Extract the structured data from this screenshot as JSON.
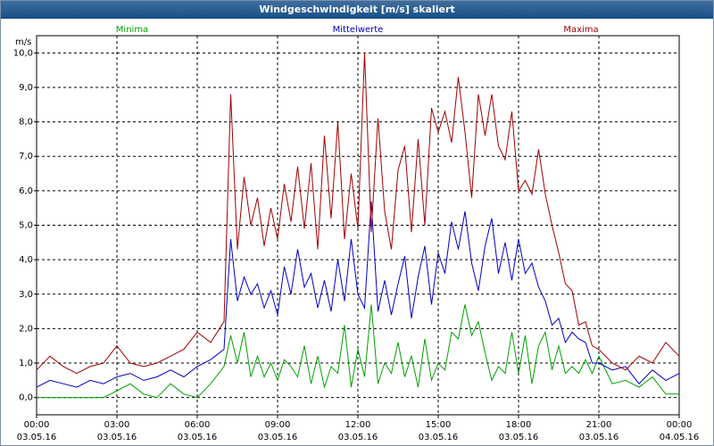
{
  "window": {
    "title": "Windgeschwindigkeit [m/s] skaliert"
  },
  "chart_data": {
    "type": "line",
    "title": "Windgeschwindigkeit [m/s] skaliert",
    "ylabel": "m/s",
    "ylim": [
      -0.5,
      10.5
    ],
    "xlim": [
      0,
      24
    ],
    "grid": true,
    "yticks": [
      "0,0",
      "1,0",
      "2,0",
      "3,0",
      "4,0",
      "5,0",
      "6,0",
      "7,0",
      "8,0",
      "9,0",
      "10,0"
    ],
    "ytick_values": [
      0,
      1,
      2,
      3,
      4,
      5,
      6,
      7,
      8,
      9,
      10
    ],
    "xticks": [
      {
        "time": "00:00",
        "date": "03.05.16",
        "hour": 0
      },
      {
        "time": "03:00",
        "date": "03.05.16",
        "hour": 3
      },
      {
        "time": "06:00",
        "date": "03.05.16",
        "hour": 6
      },
      {
        "time": "09:00",
        "date": "03.05.16",
        "hour": 9
      },
      {
        "time": "12:00",
        "date": "03.05.16",
        "hour": 12
      },
      {
        "time": "15:00",
        "date": "03.05.16",
        "hour": 15
      },
      {
        "time": "18:00",
        "date": "03.05.16",
        "hour": 18
      },
      {
        "time": "21:00",
        "date": "03.05.16",
        "hour": 21
      },
      {
        "time": "00:00",
        "date": "04.05.16",
        "hour": 24
      }
    ],
    "series": [
      {
        "name": "Minima",
        "color": "#00a000",
        "x": [
          0,
          0.5,
          1,
          1.5,
          2,
          2.5,
          3,
          3.5,
          4,
          4.5,
          5,
          5.5,
          6,
          6.5,
          7,
          7.25,
          7.5,
          7.75,
          8,
          8.25,
          8.5,
          8.75,
          9,
          9.25,
          9.5,
          9.75,
          10,
          10.25,
          10.5,
          10.75,
          11,
          11.25,
          11.5,
          11.75,
          12,
          12.25,
          12.5,
          12.75,
          13,
          13.25,
          13.5,
          13.75,
          14,
          14.25,
          14.5,
          14.75,
          15,
          15.25,
          15.5,
          15.75,
          16,
          16.25,
          16.5,
          16.75,
          17,
          17.25,
          17.5,
          17.75,
          18,
          18.25,
          18.5,
          18.75,
          19,
          19.25,
          19.5,
          19.75,
          20,
          20.25,
          20.5,
          20.75,
          21,
          21.5,
          22,
          22.5,
          23,
          23.5,
          24
        ],
        "values": [
          0,
          0,
          0,
          0,
          0,
          0,
          0.2,
          0.4,
          0.1,
          0,
          0.4,
          0.1,
          0,
          0.4,
          0.9,
          1.8,
          1.0,
          1.9,
          0.6,
          1.2,
          0.6,
          1.0,
          0.5,
          1.1,
          0.9,
          0.6,
          1.5,
          0.4,
          1.2,
          0.3,
          0.9,
          0.7,
          2.1,
          0.3,
          1.4,
          0.6,
          2.7,
          0.4,
          1.0,
          0.7,
          1.6,
          0.6,
          1.2,
          0.3,
          1.7,
          0.5,
          1.0,
          0.8,
          1.9,
          1.7,
          2.7,
          1.8,
          2.2,
          1.3,
          0.5,
          0.9,
          0.7,
          1.9,
          0.7,
          1.8,
          0.4,
          1.5,
          1.9,
          0.8,
          1.5,
          0.7,
          0.9,
          0.7,
          1.1,
          0.7,
          1.2,
          0.4,
          0.5,
          0.3,
          0.6,
          0.1,
          0.1
        ]
      },
      {
        "name": "Mittelwerte",
        "color": "#0000c0",
        "x": [
          0,
          0.5,
          1,
          1.5,
          2,
          2.5,
          3,
          3.5,
          4,
          4.5,
          5,
          5.5,
          6,
          6.5,
          7,
          7.25,
          7.5,
          7.75,
          8,
          8.25,
          8.5,
          8.75,
          9,
          9.25,
          9.5,
          9.75,
          10,
          10.25,
          10.5,
          10.75,
          11,
          11.25,
          11.5,
          11.75,
          12,
          12.25,
          12.5,
          12.75,
          13,
          13.25,
          13.5,
          13.75,
          14,
          14.25,
          14.5,
          14.75,
          15,
          15.25,
          15.5,
          15.75,
          16,
          16.25,
          16.5,
          16.75,
          17,
          17.25,
          17.5,
          17.75,
          18,
          18.25,
          18.5,
          18.75,
          19,
          19.25,
          19.5,
          19.75,
          20,
          20.25,
          20.5,
          20.75,
          21,
          21.5,
          22,
          22.5,
          23,
          23.5,
          24
        ],
        "values": [
          0.3,
          0.5,
          0.4,
          0.3,
          0.5,
          0.4,
          0.6,
          0.7,
          0.5,
          0.6,
          0.8,
          0.6,
          0.9,
          1.1,
          1.4,
          4.6,
          2.8,
          3.5,
          3.0,
          3.3,
          2.6,
          3.1,
          2.4,
          3.8,
          3.0,
          4.3,
          3.2,
          3.6,
          2.6,
          3.4,
          2.5,
          4.0,
          2.8,
          4.6,
          3.0,
          2.6,
          5.7,
          2.5,
          3.4,
          2.4,
          3.3,
          4.1,
          2.3,
          3.5,
          4.4,
          2.7,
          4.2,
          3.6,
          5.1,
          4.3,
          5.4,
          3.9,
          3.1,
          4.4,
          5.2,
          3.6,
          4.5,
          3.4,
          4.6,
          3.6,
          3.9,
          3.2,
          2.8,
          2.1,
          2.3,
          1.6,
          1.9,
          1.7,
          1.6,
          1.0,
          1.0,
          0.8,
          0.9,
          0.4,
          0.8,
          0.5,
          0.7
        ]
      },
      {
        "name": "Maxima",
        "color": "#a00000",
        "x": [
          0,
          0.5,
          1,
          1.5,
          2,
          2.5,
          3,
          3.5,
          4,
          4.5,
          5,
          5.5,
          6,
          6.5,
          7,
          7.25,
          7.5,
          7.75,
          8,
          8.25,
          8.5,
          8.75,
          9,
          9.25,
          9.5,
          9.75,
          10,
          10.25,
          10.5,
          10.75,
          11,
          11.25,
          11.5,
          11.75,
          12,
          12.25,
          12.5,
          12.75,
          13,
          13.25,
          13.5,
          13.75,
          14,
          14.25,
          14.5,
          14.75,
          15,
          15.25,
          15.5,
          15.75,
          16,
          16.25,
          16.5,
          16.75,
          17,
          17.25,
          17.5,
          17.75,
          18,
          18.25,
          18.5,
          18.75,
          19,
          19.25,
          19.5,
          19.75,
          20,
          20.25,
          20.5,
          20.75,
          21,
          21.5,
          22,
          22.5,
          23,
          23.5,
          24
        ],
        "values": [
          0.8,
          1.2,
          0.9,
          0.7,
          0.9,
          1.0,
          1.5,
          1.0,
          0.9,
          1.0,
          1.2,
          1.4,
          1.9,
          1.6,
          2.2,
          8.8,
          4.3,
          6.4,
          5.0,
          5.8,
          4.4,
          5.5,
          4.6,
          6.2,
          5.1,
          6.7,
          4.9,
          6.8,
          4.3,
          7.6,
          5.2,
          8.0,
          4.6,
          6.5,
          4.9,
          10.0,
          4.8,
          8.1,
          5.4,
          4.3,
          6.6,
          7.3,
          4.8,
          7.5,
          5.0,
          8.4,
          7.7,
          8.3,
          7.4,
          9.3,
          7.7,
          5.8,
          8.8,
          7.6,
          8.8,
          7.3,
          6.9,
          8.3,
          6.0,
          6.3,
          5.9,
          7.2,
          5.9,
          5.0,
          4.2,
          3.3,
          3.1,
          2.1,
          2.2,
          1.5,
          1.4,
          1.0,
          0.8,
          1.2,
          1.0,
          1.6,
          1.2
        ]
      }
    ]
  }
}
